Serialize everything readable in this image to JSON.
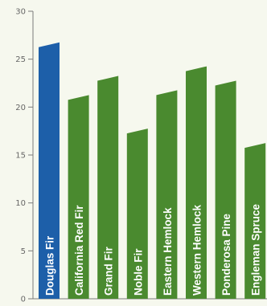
{
  "chart_data": {
    "type": "bar",
    "categories": [
      "Douglas Fir",
      "California Red Fir",
      "Grand Fir",
      "Noble Fir",
      "Eastern Hemlock",
      "Western Hemlock",
      "Ponderosa Pine",
      "Engleman Spruce"
    ],
    "values": [
      26.5,
      21.0,
      23.0,
      17.5,
      21.5,
      24.0,
      22.5,
      16.0
    ],
    "highlight_index": 0,
    "ylim": [
      0,
      30
    ],
    "yticks": [
      0,
      5,
      10,
      15,
      20,
      25,
      30
    ],
    "title": "",
    "xlabel": "",
    "ylabel": "",
    "grid": false,
    "colors": {
      "highlight": "#1d5fa9",
      "bar": "#4a8a2f",
      "axis": "#7a7a7a",
      "background": "#f6f8ee",
      "label": "#ffffff"
    }
  }
}
